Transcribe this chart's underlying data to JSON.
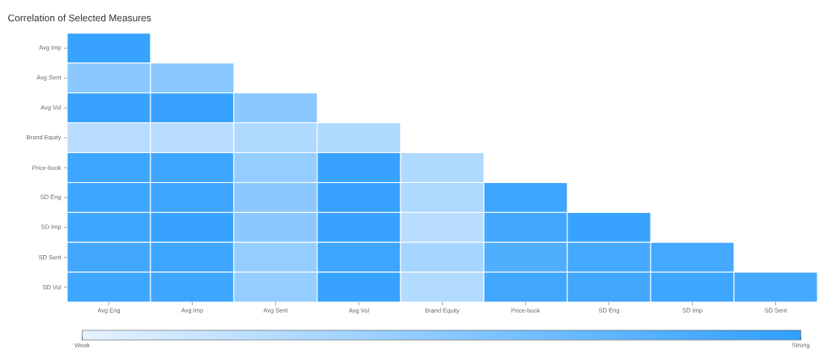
{
  "chart_data": {
    "type": "heatmap",
    "title": "Correlation of Selected Measures",
    "categories": [
      "Avg Eng",
      "Avg Imp",
      "Avg Sent",
      "Avg Vol",
      "Brand Equity",
      "Price-book",
      "SD Eng",
      "SD Imp",
      "SD Sent"
    ],
    "y_categories": [
      "Avg Imp",
      "Avg Sent",
      "Avg Vol",
      "Brand Equity",
      "Price-book",
      "SD Eng",
      "SD Imp",
      "SD Sent",
      "SD Vol"
    ],
    "cells": [
      [
        0.95,
        null,
        null,
        null,
        null,
        null,
        null,
        null,
        null
      ],
      [
        0.5,
        0.5,
        null,
        null,
        null,
        null,
        null,
        null,
        null
      ],
      [
        0.95,
        0.95,
        0.5,
        null,
        null,
        null,
        null,
        null,
        null
      ],
      [
        0.25,
        0.25,
        0.3,
        0.3,
        null,
        null,
        null,
        null,
        null
      ],
      [
        0.92,
        0.92,
        0.45,
        0.95,
        0.3,
        null,
        null,
        null,
        null
      ],
      [
        0.92,
        0.92,
        0.5,
        0.95,
        0.3,
        0.92,
        null,
        null,
        null
      ],
      [
        0.92,
        0.95,
        0.5,
        0.95,
        0.25,
        0.9,
        0.95,
        null,
        null
      ],
      [
        0.9,
        0.92,
        0.45,
        0.92,
        0.35,
        0.82,
        0.88,
        0.88,
        null
      ],
      [
        0.92,
        0.92,
        0.45,
        0.95,
        0.28,
        0.9,
        0.9,
        0.92,
        0.88
      ]
    ],
    "colors": [
      "#e6f2ff",
      "#2f9fff"
    ],
    "clim": [
      0,
      1
    ],
    "cticks": [
      {
        "value": 0,
        "label": "Weak"
      },
      {
        "value": 1,
        "label": "Strong"
      }
    ]
  }
}
